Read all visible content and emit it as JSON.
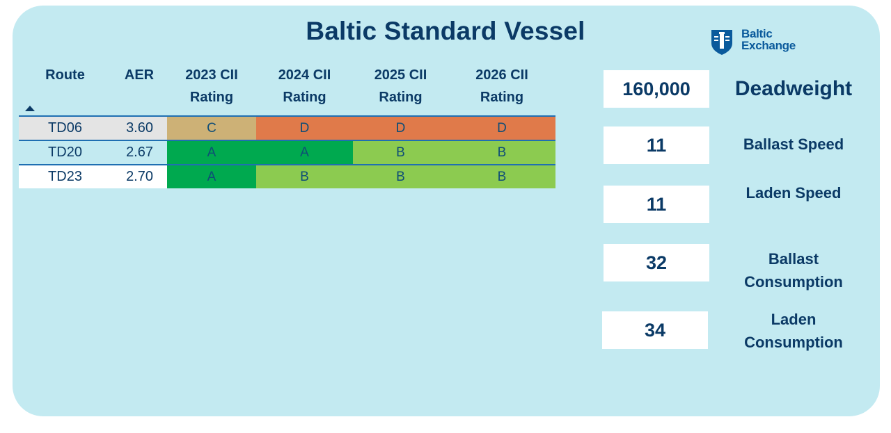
{
  "title": "Baltic Standard Vessel",
  "logo": {
    "line1": "Baltic",
    "line2": "Exchange"
  },
  "table": {
    "headers": {
      "route": "Route",
      "aer": "AER",
      "y2023": [
        "2023 CII",
        "Rating"
      ],
      "y2024": [
        "2024 CII",
        "Rating"
      ],
      "y2025": [
        "2025 CII",
        "Rating"
      ],
      "y2026": [
        "2026 CII",
        "Rating"
      ]
    },
    "sort_column": "Route",
    "rows": [
      {
        "route": "TD06",
        "aer": "3.60",
        "ratings": [
          "C",
          "D",
          "D",
          "D"
        ]
      },
      {
        "route": "TD20",
        "aer": "2.67",
        "ratings": [
          "A",
          "A",
          "B",
          "B"
        ]
      },
      {
        "route": "TD23",
        "aer": "2.70",
        "ratings": [
          "A",
          "B",
          "B",
          "B"
        ]
      }
    ],
    "rating_colors": {
      "A": "#00a94f",
      "B": "#8ccb50",
      "C": "#cdb176",
      "D": "#e07a4a"
    }
  },
  "kpis": [
    {
      "value": "160,000",
      "label": "Deadweight"
    },
    {
      "value": "11",
      "label": "Ballast Speed"
    },
    {
      "value": "11",
      "label": "Laden Speed"
    },
    {
      "value": "32",
      "label_lines": [
        "Ballast",
        "Consumption"
      ]
    },
    {
      "value": "34",
      "label_lines": [
        "Laden",
        "Consumption"
      ]
    }
  ],
  "colors": {
    "panel_bg": "#c3eaf1",
    "text_navy": "#0b3a66",
    "header_line": "#1f6fb2"
  }
}
